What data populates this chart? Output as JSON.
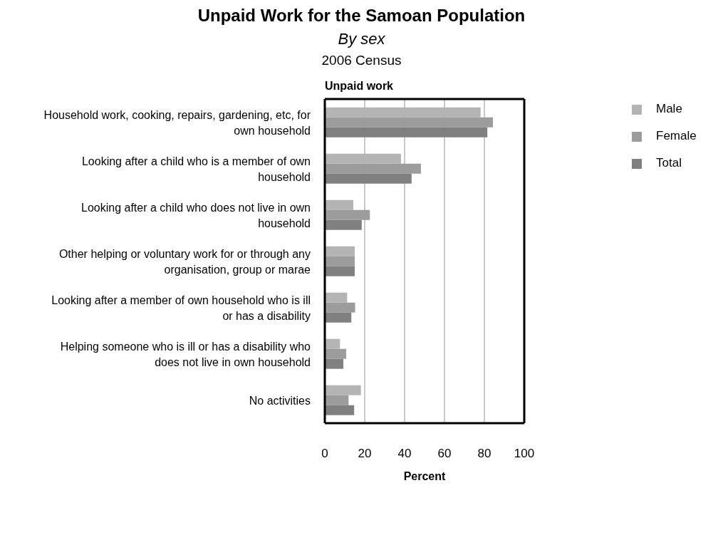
{
  "chart_data": {
    "type": "bar",
    "orientation": "horizontal",
    "title": "Unpaid Work for the Samoan Population",
    "subtitle": "By sex",
    "annotations": [
      "2006 Census"
    ],
    "ylabel": "Unpaid work",
    "xlabel": "Percent",
    "categories": [
      "Household work, cooking, repairs, gardening, etc, for own household",
      "Looking after a child who is a member of own household",
      "Looking after a child who does not live in own household",
      "Other helping or voluntary work for or through any organisation, group or marae",
      "Looking after a member of own household who is ill or has a disability",
      "Helping someone who is ill or has a disability who does not live in own household",
      "No activities"
    ],
    "series": [
      {
        "name": "Male",
        "color": "#b4b4b4",
        "values": [
          78.1,
          38.2,
          14.3,
          15.0,
          11.2,
          7.6,
          18.1
        ]
      },
      {
        "name": "Female",
        "color": "#9c9c9c",
        "values": [
          84.3,
          48.2,
          22.6,
          15.0,
          15.2,
          10.7,
          11.9
        ]
      },
      {
        "name": "Total",
        "color": "#808080",
        "values": [
          81.5,
          43.5,
          18.5,
          15.0,
          13.3,
          9.3,
          14.7
        ]
      }
    ],
    "xlim": [
      0,
      100
    ],
    "xticks": [
      0,
      20,
      40,
      60,
      80,
      100
    ],
    "grid": "x",
    "legend": "top right"
  }
}
